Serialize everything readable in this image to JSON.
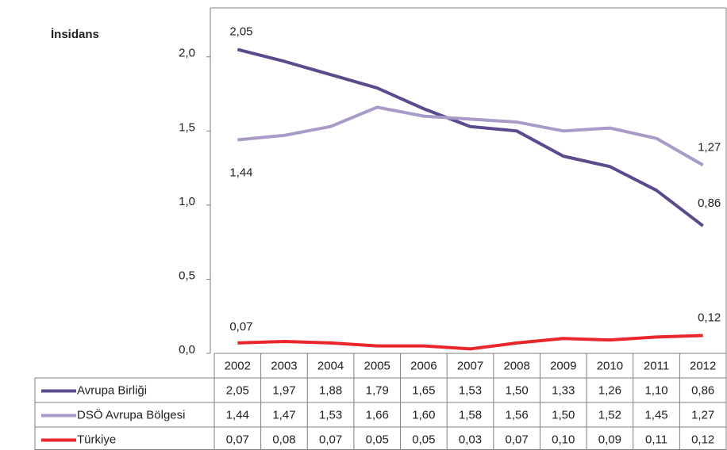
{
  "chart_data": {
    "type": "line",
    "y_label": "İnsidans",
    "categories": [
      "2002",
      "2003",
      "2004",
      "2005",
      "2006",
      "2007",
      "2008",
      "2009",
      "2010",
      "2011",
      "2012"
    ],
    "series": [
      {
        "name": "Avrupa Birliği",
        "color": "#5b4a8c",
        "values": [
          2.05,
          1.97,
          1.88,
          1.79,
          1.65,
          1.53,
          1.5,
          1.33,
          1.26,
          1.1,
          0.86
        ],
        "value_labels": [
          "2,05",
          "1,97",
          "1,88",
          "1,79",
          "1,65",
          "1,53",
          "1,50",
          "1,33",
          "1,26",
          "1,10",
          "0,86"
        ]
      },
      {
        "name": "DSÖ Avrupa Bölgesi",
        "color": "#a99bc8",
        "values": [
          1.44,
          1.47,
          1.53,
          1.66,
          1.6,
          1.58,
          1.56,
          1.5,
          1.52,
          1.45,
          1.27
        ],
        "value_labels": [
          "1,44",
          "1,47",
          "1,53",
          "1,66",
          "1,60",
          "1,58",
          "1,56",
          "1,50",
          "1,52",
          "1,45",
          "1,27"
        ]
      },
      {
        "name": "Türkiye",
        "color": "#e8262b",
        "values": [
          0.07,
          0.08,
          0.07,
          0.05,
          0.05,
          0.03,
          0.07,
          0.1,
          0.09,
          0.11,
          0.12
        ],
        "value_labels": [
          "0,07",
          "0,08",
          "0,07",
          "0,05",
          "0,05",
          "0,03",
          "0,07",
          "0,10",
          "0,09",
          "0,11",
          "0,12"
        ]
      }
    ],
    "ylim": [
      0,
      2.33
    ],
    "yticks": [
      {
        "value": 0,
        "label": "0,0"
      },
      {
        "value": 0.5,
        "label": "0,5"
      },
      {
        "value": 1,
        "label": "1,0"
      },
      {
        "value": 1.5,
        "label": "1,5"
      },
      {
        "value": 2,
        "label": "2,0"
      }
    ],
    "grid": false,
    "data_table": true
  }
}
